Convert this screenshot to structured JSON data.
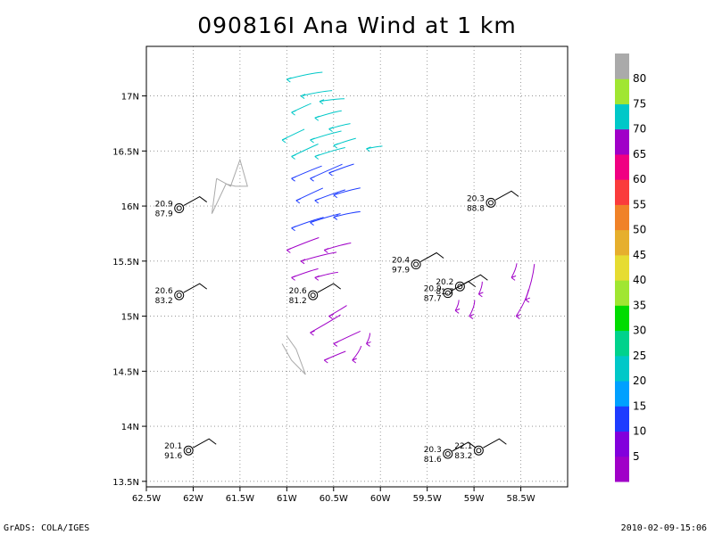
{
  "footer": {
    "left": "GrADS: COLA/IGES",
    "right": "2010-02-09-15:06"
  },
  "chart_data": {
    "type": "scatter",
    "title": "090816I Ana Wind at 1 km",
    "xlim": [
      -62.5,
      -58.0
    ],
    "ylim": [
      13.45,
      17.45
    ],
    "x_ticks": [
      -62.5,
      -62,
      -61.5,
      -61,
      -60.5,
      -60,
      -59.5,
      -59,
      -58.5
    ],
    "x_tick_labels": [
      "62.5W",
      "62W",
      "61.5W",
      "61W",
      "60.5W",
      "60W",
      "59.5W",
      "59W",
      "58.5W"
    ],
    "y_ticks": [
      13.5,
      14,
      14.5,
      15,
      15.5,
      16,
      16.5,
      17
    ],
    "y_tick_labels": [
      "13.5N",
      "14N",
      "14.5N",
      "15N",
      "15.5N",
      "16N",
      "16.5N",
      "17N"
    ],
    "grid": true,
    "colorbar": {
      "labels": [
        "5",
        "10",
        "15",
        "20",
        "25",
        "30",
        "35",
        "40",
        "45",
        "50",
        "55",
        "60",
        "65",
        "70",
        "75",
        "80"
      ],
      "colors": [
        "#a000c8",
        "#8200dc",
        "#1e3cff",
        "#00a0ff",
        "#00c8c8",
        "#00d28c",
        "#00dc00",
        "#a0e632",
        "#e6dc32",
        "#e6af2d",
        "#f08228",
        "#fa3c3c",
        "#f00082",
        "#a000c8",
        "#00c8c8",
        "#a0e632",
        "#aaaaaa"
      ]
    },
    "stations": [
      {
        "lon": -62.15,
        "lat": 15.98,
        "label_top": "20.9",
        "label_bottom": "87.9"
      },
      {
        "lon": -62.15,
        "lat": 15.19,
        "label_top": "20.6",
        "label_bottom": "83.2"
      },
      {
        "lon": -60.72,
        "lat": 15.19,
        "label_top": "20.6",
        "label_bottom": "81.2"
      },
      {
        "lon": -59.62,
        "lat": 15.47,
        "label_top": "20.4",
        "label_bottom": "97.9"
      },
      {
        "lon": -59.28,
        "lat": 15.21,
        "label_top": "20.9",
        "label_bottom": "87.7"
      },
      {
        "lon": -59.15,
        "lat": 15.27,
        "label_top": "20.2",
        "label_bottom": "81.7"
      },
      {
        "lon": -58.82,
        "lat": 16.03,
        "label_top": "20.3",
        "label_bottom": "88.8"
      },
      {
        "lon": -62.05,
        "lat": 13.78,
        "label_top": "20.1",
        "label_bottom": "91.6"
      },
      {
        "lon": -59.28,
        "lat": 13.75,
        "label_top": "20.3",
        "label_bottom": "81.6"
      },
      {
        "lon": -58.95,
        "lat": 13.78,
        "label_top": "22.1",
        "label_bottom": "83.2"
      }
    ]
  }
}
